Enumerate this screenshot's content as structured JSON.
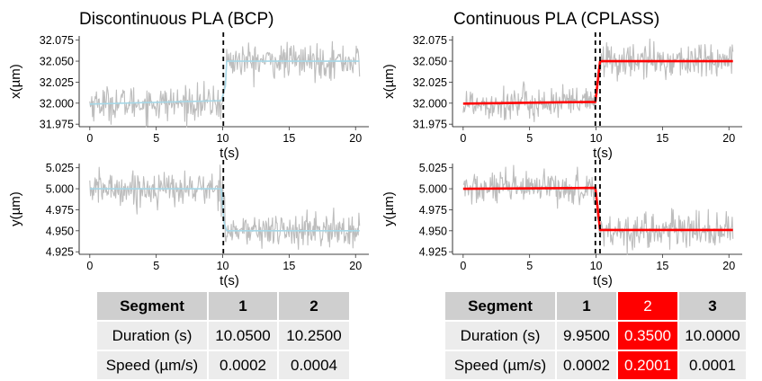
{
  "titles": {
    "left": "Discontinuous PLA (BCP)",
    "right": "Continuous PLA (CPLASS)"
  },
  "colors": {
    "noise": "#bdbdbd",
    "fit_bcp": "#a6d8e8",
    "fit_cplass": "#ff0000",
    "changepoint": "#000000",
    "table_header": "#cfcfcf",
    "table_row": "#ececec",
    "highlight": "#ff0000"
  },
  "chart_data": [
    {
      "type": "line",
      "panel": "bcp-x",
      "xlabel": "t(s)",
      "ylabel": "x(µm)",
      "xlim": [
        -0.8,
        21.0
      ],
      "ylim": [
        31.972,
        32.08
      ],
      "xticks": [
        0,
        5,
        10,
        15,
        20
      ],
      "yticks": [
        31.975,
        32.0,
        32.025,
        32.05,
        32.075
      ],
      "ytick_labels": [
        "31.975",
        "32.000",
        "32.025",
        "32.050",
        "32.075"
      ],
      "noise_sd": 0.01,
      "series": [
        {
          "name": "trajectory",
          "x": [
            0,
            10.05,
            10.3,
            20.3
          ],
          "y": [
            32.0,
            32.0,
            32.05,
            32.05
          ]
        },
        {
          "name": "fit",
          "x": [
            0,
            9.9,
            10.2,
            10.3,
            20.3
          ],
          "y": [
            31.999,
            32.003,
            32.02,
            32.05,
            32.05
          ]
        }
      ],
      "changepoints": [
        10.05
      ]
    },
    {
      "type": "line",
      "panel": "bcp-y",
      "xlabel": "t(s)",
      "ylabel": "y(µm)",
      "xlim": [
        -0.8,
        21.0
      ],
      "ylim": [
        4.922,
        5.03
      ],
      "xticks": [
        0,
        5,
        10,
        15,
        20
      ],
      "yticks": [
        4.925,
        4.95,
        4.975,
        5.0,
        5.025
      ],
      "ytick_labels": [
        "4.925",
        "4.950",
        "4.975",
        "5.000",
        "5.025"
      ],
      "noise_sd": 0.01,
      "series": [
        {
          "name": "trajectory",
          "x": [
            0,
            10.05,
            10.3,
            20.3
          ],
          "y": [
            5.0,
            5.0,
            4.95,
            4.95
          ]
        },
        {
          "name": "fit",
          "x": [
            0,
            9.9,
            10.1,
            10.3,
            20.3
          ],
          "y": [
            5.0,
            5.0,
            4.96,
            4.95,
            4.95
          ]
        }
      ],
      "changepoints": [
        10.05
      ]
    },
    {
      "type": "line",
      "panel": "cplass-x",
      "xlabel": "t(s)",
      "ylabel": "x(µm)",
      "xlim": [
        -0.8,
        21.0
      ],
      "ylim": [
        31.972,
        32.08
      ],
      "xticks": [
        0,
        5,
        10,
        15,
        20
      ],
      "yticks": [
        31.975,
        32.0,
        32.025,
        32.05,
        32.075
      ],
      "ytick_labels": [
        "31.975",
        "32.000",
        "32.025",
        "32.050",
        "32.075"
      ],
      "noise_sd": 0.01,
      "series": [
        {
          "name": "trajectory",
          "x": [
            0,
            9.95,
            10.3,
            20.3
          ],
          "y": [
            32.0,
            32.0,
            32.05,
            32.05
          ]
        },
        {
          "name": "fit",
          "x": [
            0,
            9.95,
            10.3,
            20.3
          ],
          "y": [
            31.9995,
            32.0015,
            32.05,
            32.05
          ]
        }
      ],
      "changepoints": [
        9.95,
        10.3
      ]
    },
    {
      "type": "line",
      "panel": "cplass-y",
      "xlabel": "t(s)",
      "ylabel": "y(µm)",
      "xlim": [
        -0.8,
        21.0
      ],
      "ylim": [
        4.922,
        5.03
      ],
      "xticks": [
        0,
        5,
        10,
        15,
        20
      ],
      "yticks": [
        4.925,
        4.95,
        4.975,
        5.0,
        5.025
      ],
      "ytick_labels": [
        "4.925",
        "4.950",
        "4.975",
        "5.000",
        "5.025"
      ],
      "noise_sd": 0.01,
      "series": [
        {
          "name": "trajectory",
          "x": [
            0,
            9.95,
            10.3,
            20.3
          ],
          "y": [
            5.0,
            5.0,
            4.95,
            4.95
          ]
        },
        {
          "name": "fit",
          "x": [
            0,
            9.95,
            10.3,
            20.3
          ],
          "y": [
            5.0,
            5.001,
            4.951,
            4.951
          ]
        }
      ],
      "changepoints": [
        9.95,
        10.3
      ]
    }
  ],
  "tables": {
    "bcp": {
      "header": [
        "Segment",
        "1",
        "2"
      ],
      "rows": [
        [
          "Duration (s)",
          "10.0500",
          "10.2500"
        ],
        [
          "Speed (µm/s)",
          "0.0002",
          "0.0004"
        ]
      ]
    },
    "cplass": {
      "header": [
        "Segment",
        "1",
        "2",
        "3"
      ],
      "rows": [
        [
          "Duration (s)",
          "9.9500",
          "0.3500",
          "10.0000"
        ],
        [
          "Speed (µm/s)",
          "0.0002",
          "0.2001",
          "0.0001"
        ]
      ],
      "highlight_column": 2
    }
  }
}
